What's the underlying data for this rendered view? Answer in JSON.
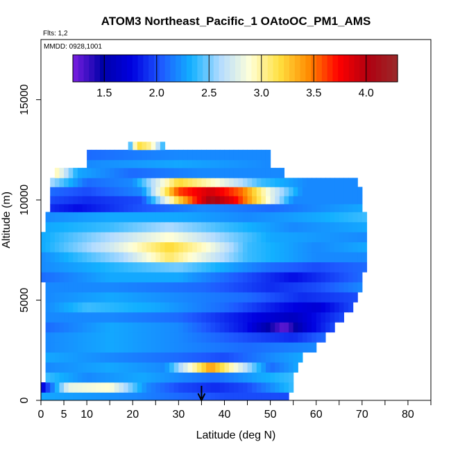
{
  "chart_data": {
    "type": "heatmap",
    "title": "ATOM3 Northeast_Pacific_1 OAtoOC_PM1_AMS",
    "flights_text": "Flts: 1,2",
    "dates_text": "MMDD: 0928,1001",
    "xlabel": "Latitude (deg N)",
    "ylabel": "Altitude (m)",
    "xlim": [
      0,
      85
    ],
    "ylim": [
      0,
      18000
    ],
    "x_ticks": [
      0,
      5,
      10,
      20,
      30,
      40,
      50,
      60,
      70,
      80
    ],
    "x_minor_ticks": [
      15,
      25,
      35,
      45,
      55,
      65,
      75,
      85
    ],
    "y_ticks": [
      0,
      5000,
      10000,
      15000
    ],
    "colorbar": {
      "range": [
        1.2,
        4.3
      ],
      "ticks": [
        "1.5",
        "2.0",
        "2.5",
        "3.0",
        "3.5",
        "4.0"
      ],
      "tick_values": [
        1.5,
        2.0,
        2.5,
        3.0,
        3.5,
        4.0
      ],
      "colors": [
        "#7a1fe0",
        "#0000a8",
        "#0000e0",
        "#1e5aff",
        "#12b0ff",
        "#b4dcff",
        "#ffffd8",
        "#ffe040",
        "#ff8a00",
        "#ff0000",
        "#b00010",
        "#9a2a2a"
      ]
    },
    "marker_latitude": 35,
    "bands": [
      {
        "y0": 0,
        "y1": 400,
        "lat0": 0,
        "lat1": 54,
        "kp": [
          [
            0,
            2.3
          ],
          [
            20,
            2.2
          ],
          [
            40,
            2.0
          ],
          [
            54,
            2.0
          ]
        ]
      },
      {
        "y0": 400,
        "y1": 900,
        "lat0": 0,
        "lat1": 55,
        "kp": [
          [
            0,
            1.7
          ],
          [
            6,
            2.8
          ],
          [
            15,
            2.9
          ],
          [
            23,
            2.2
          ],
          [
            30,
            2.0
          ],
          [
            38,
            1.9
          ],
          [
            45,
            2.0
          ],
          [
            55,
            2.4
          ]
        ]
      },
      {
        "y0": 900,
        "y1": 1400,
        "lat0": 1,
        "lat1": 55,
        "kp": [
          [
            1,
            2.4
          ],
          [
            10,
            2.2
          ],
          [
            22,
            2.3
          ],
          [
            30,
            2.2
          ],
          [
            38,
            2.1
          ],
          [
            48,
            2.3
          ],
          [
            55,
            2.4
          ]
        ]
      },
      {
        "y0": 1400,
        "y1": 1900,
        "lat0": 1,
        "lat1": 56,
        "kp": [
          [
            1,
            2.2
          ],
          [
            15,
            2.3
          ],
          [
            27,
            2.2
          ],
          [
            37,
            3.4
          ],
          [
            42,
            2.9
          ],
          [
            50,
            2.1
          ],
          [
            56,
            2.3
          ]
        ]
      },
      {
        "y0": 1900,
        "y1": 2400,
        "lat0": 1,
        "lat1": 57,
        "kp": [
          [
            1,
            2.3
          ],
          [
            15,
            2.2
          ],
          [
            30,
            2.1
          ],
          [
            40,
            2.0
          ],
          [
            50,
            2.2
          ],
          [
            57,
            2.3
          ]
        ]
      },
      {
        "y0": 2400,
        "y1": 2900,
        "lat0": 1,
        "lat1": 60,
        "kp": [
          [
            1,
            2.2
          ],
          [
            15,
            2.3
          ],
          [
            30,
            2.2
          ],
          [
            45,
            2.1
          ],
          [
            60,
            2.2
          ]
        ]
      },
      {
        "y0": 2900,
        "y1": 3400,
        "lat0": 1,
        "lat1": 62,
        "kp": [
          [
            1,
            2.2
          ],
          [
            15,
            2.3
          ],
          [
            30,
            2.2
          ],
          [
            45,
            2.0
          ],
          [
            55,
            1.9
          ],
          [
            62,
            2.1
          ]
        ]
      },
      {
        "y0": 3400,
        "y1": 3900,
        "lat0": 1,
        "lat1": 64,
        "kp": [
          [
            1,
            2.1
          ],
          [
            15,
            2.3
          ],
          [
            30,
            2.2
          ],
          [
            45,
            1.8
          ],
          [
            53,
            1.25
          ],
          [
            58,
            1.7
          ],
          [
            64,
            2.0
          ]
        ]
      },
      {
        "y0": 3900,
        "y1": 4400,
        "lat0": 1,
        "lat1": 66,
        "kp": [
          [
            1,
            2.2
          ],
          [
            15,
            2.2
          ],
          [
            30,
            2.1
          ],
          [
            45,
            1.8
          ],
          [
            55,
            1.6
          ],
          [
            60,
            1.8
          ],
          [
            66,
            2.0
          ]
        ]
      },
      {
        "y0": 4400,
        "y1": 4900,
        "lat0": 1,
        "lat1": 68,
        "kp": [
          [
            1,
            2.2
          ],
          [
            10,
            2.4
          ],
          [
            25,
            2.3
          ],
          [
            40,
            2.1
          ],
          [
            53,
            1.8
          ],
          [
            60,
            1.7
          ],
          [
            68,
            2.0
          ]
        ]
      },
      {
        "y0": 4900,
        "y1": 5400,
        "lat0": 1,
        "lat1": 69,
        "kp": [
          [
            1,
            2.2
          ],
          [
            15,
            2.3
          ],
          [
            30,
            2.2
          ],
          [
            45,
            2.1
          ],
          [
            57,
            1.9
          ],
          [
            69,
            2.0
          ]
        ]
      },
      {
        "y0": 5400,
        "y1": 5900,
        "lat0": 1,
        "lat1": 70,
        "kp": [
          [
            1,
            2.2
          ],
          [
            15,
            2.2
          ],
          [
            35,
            2.1
          ],
          [
            50,
            1.9
          ],
          [
            60,
            2.0
          ],
          [
            70,
            2.2
          ]
        ]
      },
      {
        "y0": 5900,
        "y1": 6400,
        "lat0": 0,
        "lat1": 70,
        "kp": [
          [
            0,
            2.1
          ],
          [
            15,
            2.3
          ],
          [
            30,
            2.3
          ],
          [
            45,
            2.0
          ],
          [
            55,
            1.8
          ],
          [
            65,
            2.0
          ],
          [
            70,
            2.1
          ]
        ]
      },
      {
        "y0": 6400,
        "y1": 6900,
        "lat0": 0,
        "lat1": 71,
        "kp": [
          [
            0,
            2.2
          ],
          [
            20,
            2.4
          ],
          [
            30,
            2.5
          ],
          [
            40,
            2.3
          ],
          [
            50,
            2.1
          ],
          [
            60,
            2.0
          ],
          [
            71,
            2.1
          ]
        ]
      },
      {
        "y0": 6900,
        "y1": 7400,
        "lat0": 0,
        "lat1": 71,
        "kp": [
          [
            0,
            2.2
          ],
          [
            18,
            2.6
          ],
          [
            28,
            3.1
          ],
          [
            35,
            2.8
          ],
          [
            45,
            2.4
          ],
          [
            60,
            2.2
          ],
          [
            71,
            2.2
          ]
        ]
      },
      {
        "y0": 7400,
        "y1": 7900,
        "lat0": 0,
        "lat1": 71,
        "kp": [
          [
            0,
            2.3
          ],
          [
            15,
            2.7
          ],
          [
            28,
            3.2
          ],
          [
            36,
            2.9
          ],
          [
            45,
            2.4
          ],
          [
            60,
            2.2
          ],
          [
            71,
            2.3
          ]
        ]
      },
      {
        "y0": 7900,
        "y1": 8400,
        "lat0": 0,
        "lat1": 71,
        "kp": [
          [
            0,
            2.3
          ],
          [
            15,
            2.6
          ],
          [
            28,
            2.9
          ],
          [
            38,
            2.6
          ],
          [
            50,
            2.3
          ],
          [
            71,
            2.2
          ]
        ]
      },
      {
        "y0": 8400,
        "y1": 8900,
        "lat0": 1,
        "lat1": 71,
        "kp": [
          [
            1,
            2.3
          ],
          [
            15,
            2.4
          ],
          [
            28,
            2.6
          ],
          [
            40,
            2.4
          ],
          [
            55,
            2.2
          ],
          [
            71,
            2.3
          ]
        ]
      },
      {
        "y0": 8900,
        "y1": 9400,
        "lat0": 1,
        "lat1": 71,
        "kp": [
          [
            1,
            2.2
          ],
          [
            15,
            2.3
          ],
          [
            30,
            2.3
          ],
          [
            45,
            2.2
          ],
          [
            60,
            2.3
          ],
          [
            71,
            2.4
          ]
        ]
      },
      {
        "y0": 9400,
        "y1": 9800,
        "lat0": 2,
        "lat1": 70,
        "kp": [
          [
            2,
            1.9
          ],
          [
            8,
            1.8
          ],
          [
            20,
            2.0
          ],
          [
            35,
            2.2
          ],
          [
            50,
            2.1
          ],
          [
            70,
            2.3
          ]
        ]
      },
      {
        "y0": 9800,
        "y1": 10200,
        "lat0": 2,
        "lat1": 70,
        "kp": [
          [
            2,
            2.0
          ],
          [
            10,
            1.9
          ],
          [
            22,
            2.0
          ],
          [
            30,
            3.2
          ],
          [
            37,
            4.1
          ],
          [
            42,
            3.8
          ],
          [
            47,
            3.2
          ],
          [
            55,
            2.2
          ],
          [
            70,
            2.2
          ]
        ]
      },
      {
        "y0": 10200,
        "y1": 10650,
        "lat0": 2,
        "lat1": 70,
        "kp": [
          [
            2,
            2.1
          ],
          [
            10,
            2.0
          ],
          [
            22,
            2.2
          ],
          [
            30,
            3.6
          ],
          [
            37,
            3.9
          ],
          [
            44,
            3.5
          ],
          [
            50,
            2.8
          ],
          [
            57,
            2.2
          ],
          [
            70,
            2.2
          ]
        ]
      },
      {
        "y0": 10650,
        "y1": 11100,
        "lat0": 2,
        "lat1": 69,
        "kp": [
          [
            2,
            2.6
          ],
          [
            10,
            2.1
          ],
          [
            20,
            2.2
          ],
          [
            30,
            3.2
          ],
          [
            38,
            2.9
          ],
          [
            48,
            2.4
          ],
          [
            58,
            2.2
          ],
          [
            69,
            2.2
          ]
        ]
      },
      {
        "y0": 11100,
        "y1": 11600,
        "lat0": 3,
        "lat1": 53,
        "kp": [
          [
            3,
            3.0
          ],
          [
            8,
            2.3
          ],
          [
            20,
            2.1
          ],
          [
            35,
            2.2
          ],
          [
            53,
            2.2
          ]
        ]
      },
      {
        "y0": 11600,
        "y1": 12000,
        "lat0": 10,
        "lat1": 50,
        "kp": [
          [
            10,
            2.2
          ],
          [
            30,
            2.3
          ],
          [
            50,
            2.2
          ]
        ]
      },
      {
        "y0": 12000,
        "y1": 12500,
        "lat0": 10,
        "lat1": 50,
        "kp": [
          [
            10,
            2.1
          ],
          [
            30,
            2.2
          ],
          [
            50,
            2.2
          ]
        ]
      },
      {
        "y0": 12500,
        "y1": 12900,
        "lat0": 19,
        "lat1": 27,
        "kp": [
          [
            19,
            2.2
          ],
          [
            21,
            3.2
          ],
          [
            24,
            3.0
          ],
          [
            27,
            2.3
          ]
        ]
      }
    ]
  }
}
